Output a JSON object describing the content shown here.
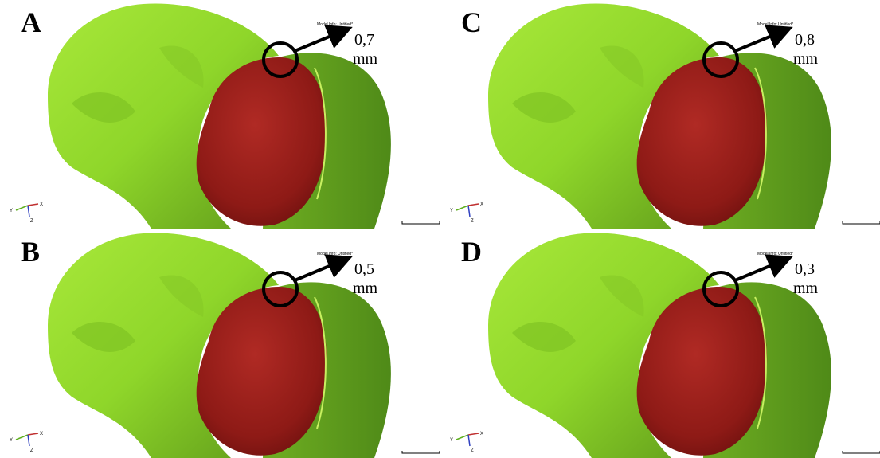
{
  "panels": [
    {
      "label": "A",
      "measurement": "0,7",
      "unit": "mm",
      "model_info": "Model Info: Untitled*",
      "axes": {
        "x": "X",
        "y": "Y",
        "z": "Z"
      }
    },
    {
      "label": "C",
      "measurement": "0,8",
      "unit": "mm",
      "model_info": "Model Info: Untitled*",
      "axes": {
        "x": "X",
        "y": "Y",
        "z": "Z"
      }
    },
    {
      "label": "B",
      "measurement": "0,5",
      "unit": "mm",
      "model_info": "Model Info: Untitled*",
      "axes": {
        "x": "X",
        "y": "Y",
        "z": "Z"
      }
    },
    {
      "label": "D",
      "measurement": "0,3",
      "unit": "mm",
      "model_info": "Model Info: Untitled*",
      "axes": {
        "x": "X",
        "y": "Y",
        "z": "Z"
      }
    }
  ]
}
